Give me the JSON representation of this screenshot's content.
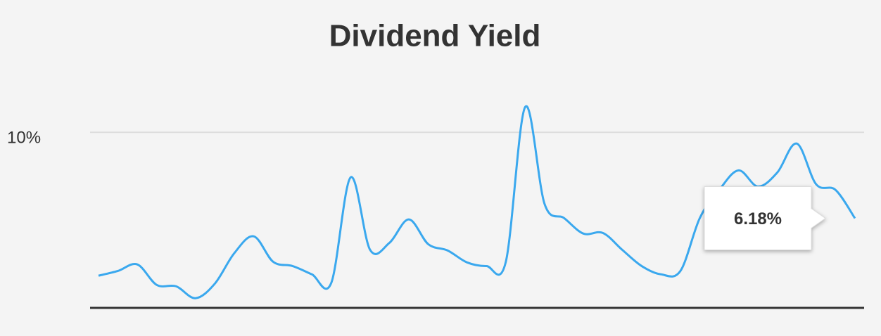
{
  "chart_data": {
    "type": "line",
    "title": "Dividend Yield",
    "categories": [
      null,
      null,
      null,
      null,
      null,
      null,
      null,
      null,
      null,
      null,
      null,
      null,
      null,
      null,
      null,
      null,
      null,
      null,
      null,
      null,
      null,
      null,
      null,
      null,
      null,
      null,
      null,
      null,
      null,
      null,
      null,
      null,
      null,
      null,
      null,
      null,
      null,
      null,
      null,
      null
    ],
    "values": [
      3.63,
      3.84,
      4.13,
      3.22,
      3.16,
      2.63,
      3.28,
      4.63,
      5.38,
      4.25,
      4.06,
      3.69,
      3.31,
      8.0,
      4.78,
      5.09,
      6.13,
      5.03,
      4.75,
      4.22,
      4.06,
      4.25,
      11.13,
      6.81,
      6.19,
      5.5,
      5.53,
      4.78,
      4.06,
      3.69,
      3.84,
      6.19,
      7.44,
      8.31,
      7.59,
      8.22,
      9.5,
      7.69,
      7.44,
      6.18
    ],
    "color": "#3aa8ee",
    "ylim": [
      2.2,
      11.6
    ],
    "yticks": [
      {
        "value": 10,
        "label": "10%"
      }
    ],
    "grid": true,
    "tooltip_label": "6.18%"
  }
}
